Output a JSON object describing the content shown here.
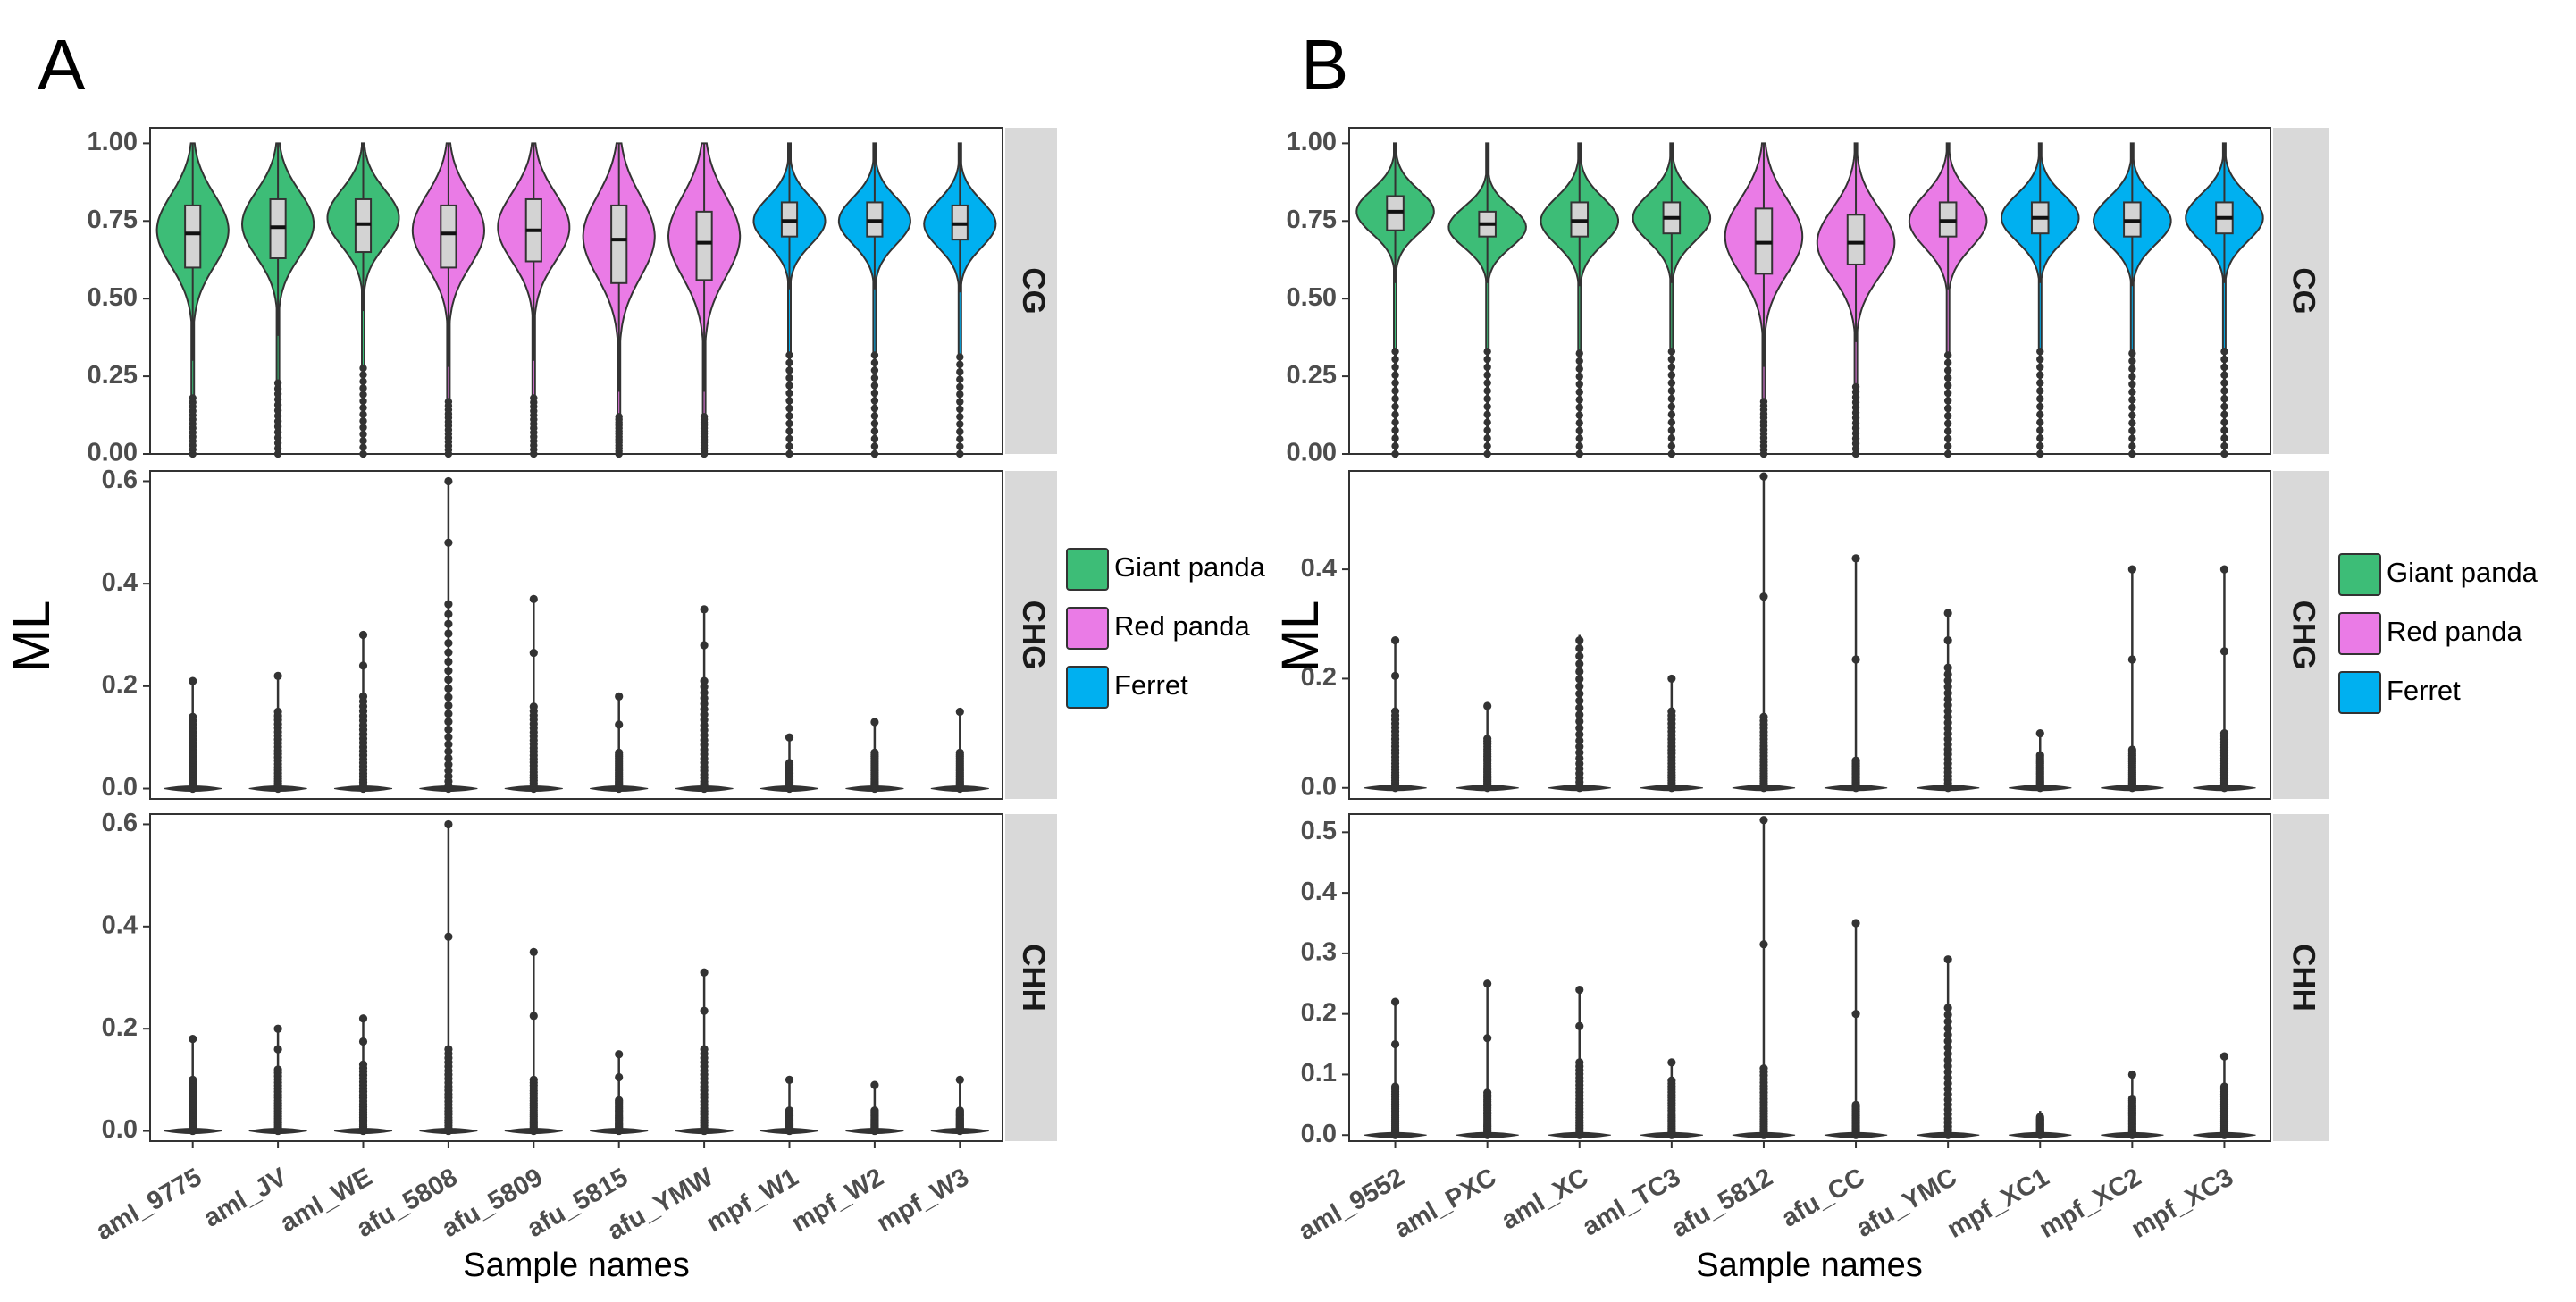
{
  "chart_data": [
    {
      "panel_letter": "A",
      "type": "violin",
      "xlabel": "Sample names",
      "ylabel": "ML",
      "samples": [
        "aml_9775",
        "aml_JV",
        "aml_WE",
        "afu_5808",
        "afu_5809",
        "afu_5815",
        "afu_YMW",
        "mpf_W1",
        "mpf_W2",
        "mpf_W3"
      ],
      "groups": [
        "Giant panda",
        "Giant panda",
        "Giant panda",
        "Red panda",
        "Red panda",
        "Red panda",
        "Red panda",
        "Ferret",
        "Ferret",
        "Ferret"
      ],
      "facets": [
        {
          "label": "CG",
          "ylim": [
            0,
            1.05
          ],
          "ticks": [
            0,
            0.25,
            0.5,
            0.75,
            1.0
          ],
          "tick_labels": [
            "0.00",
            "0.25",
            "0.50",
            "0.75",
            "1.00"
          ],
          "series": [
            {
              "sample": "aml_9775",
              "q1": 0.6,
              "median": 0.71,
              "q3": 0.8,
              "whisker_low": 0.3,
              "max": 1.0,
              "mode": 0.72,
              "spread": 0.115
            },
            {
              "sample": "aml_JV",
              "q1": 0.63,
              "median": 0.73,
              "q3": 0.82,
              "whisker_low": 0.38,
              "max": 1.0,
              "mode": 0.74,
              "spread": 0.105
            },
            {
              "sample": "aml_WE",
              "q1": 0.65,
              "median": 0.74,
              "q3": 0.82,
              "whisker_low": 0.46,
              "max": 1.0,
              "mode": 0.76,
              "spread": 0.09
            },
            {
              "sample": "afu_5808",
              "q1": 0.6,
              "median": 0.71,
              "q3": 0.8,
              "whisker_low": 0.28,
              "max": 1.0,
              "mode": 0.72,
              "spread": 0.115
            },
            {
              "sample": "afu_5809",
              "q1": 0.62,
              "median": 0.72,
              "q3": 0.82,
              "whisker_low": 0.3,
              "max": 1.0,
              "mode": 0.73,
              "spread": 0.11
            },
            {
              "sample": "afu_5815",
              "q1": 0.55,
              "median": 0.69,
              "q3": 0.8,
              "whisker_low": 0.2,
              "max": 1.0,
              "mode": 0.7,
              "spread": 0.13
            },
            {
              "sample": "afu_YMW",
              "q1": 0.56,
              "median": 0.68,
              "q3": 0.78,
              "whisker_low": 0.2,
              "max": 1.0,
              "mode": 0.7,
              "spread": 0.13
            },
            {
              "sample": "mpf_W1",
              "q1": 0.7,
              "median": 0.75,
              "q3": 0.81,
              "whisker_low": 0.53,
              "max": 1.0,
              "mode": 0.75,
              "spread": 0.075
            },
            {
              "sample": "mpf_W2",
              "q1": 0.7,
              "median": 0.75,
              "q3": 0.81,
              "whisker_low": 0.53,
              "max": 1.0,
              "mode": 0.75,
              "spread": 0.075
            },
            {
              "sample": "mpf_W3",
              "q1": 0.69,
              "median": 0.74,
              "q3": 0.8,
              "whisker_low": 0.52,
              "max": 1.0,
              "mode": 0.74,
              "spread": 0.075
            }
          ]
        },
        {
          "label": "CHG",
          "ylim": [
            -0.02,
            0.62
          ],
          "ticks": [
            0,
            0.2,
            0.4,
            0.6
          ],
          "tick_labels": [
            "0.0",
            "0.2",
            "0.4",
            "0.6"
          ],
          "series": [
            {
              "sample": "aml_9775",
              "max": 0.21,
              "dense": 0.14
            },
            {
              "sample": "aml_JV",
              "max": 0.22,
              "dense": 0.15
            },
            {
              "sample": "aml_WE",
              "max": 0.3,
              "dense": 0.18
            },
            {
              "sample": "afu_5808",
              "max": 0.6,
              "dense": 0.36
            },
            {
              "sample": "afu_5809",
              "max": 0.37,
              "dense": 0.16
            },
            {
              "sample": "afu_5815",
              "max": 0.18,
              "dense": 0.07
            },
            {
              "sample": "afu_YMW",
              "max": 0.35,
              "dense": 0.21
            },
            {
              "sample": "mpf_W1",
              "max": 0.1,
              "dense": 0.05
            },
            {
              "sample": "mpf_W2",
              "max": 0.13,
              "dense": 0.07
            },
            {
              "sample": "mpf_W3",
              "max": 0.15,
              "dense": 0.07
            }
          ]
        },
        {
          "label": "CHH",
          "ylim": [
            -0.02,
            0.62
          ],
          "ticks": [
            0,
            0.2,
            0.4,
            0.6
          ],
          "tick_labels": [
            "0.0",
            "0.2",
            "0.4",
            "0.6"
          ],
          "series": [
            {
              "sample": "aml_9775",
              "max": 0.18,
              "dense": 0.1
            },
            {
              "sample": "aml_JV",
              "max": 0.2,
              "dense": 0.12
            },
            {
              "sample": "aml_WE",
              "max": 0.22,
              "dense": 0.13
            },
            {
              "sample": "afu_5808",
              "max": 0.6,
              "dense": 0.16
            },
            {
              "sample": "afu_5809",
              "max": 0.35,
              "dense": 0.1
            },
            {
              "sample": "afu_5815",
              "max": 0.15,
              "dense": 0.06
            },
            {
              "sample": "afu_YMW",
              "max": 0.31,
              "dense": 0.16
            },
            {
              "sample": "mpf_W1",
              "max": 0.1,
              "dense": 0.04
            },
            {
              "sample": "mpf_W2",
              "max": 0.09,
              "dense": 0.04
            },
            {
              "sample": "mpf_W3",
              "max": 0.1,
              "dense": 0.04
            }
          ]
        }
      ]
    },
    {
      "panel_letter": "B",
      "type": "violin",
      "xlabel": "Sample names",
      "ylabel": "ML",
      "samples": [
        "aml_9552",
        "aml_PXC",
        "aml_XC",
        "aml_TC3",
        "afu_5812",
        "afu_CC",
        "afu_YMC",
        "mpf_XC1",
        "mpf_XC2",
        "mpf_XC3"
      ],
      "groups": [
        "Giant panda",
        "Giant panda",
        "Giant panda",
        "Giant panda",
        "Red panda",
        "Red panda",
        "Red panda",
        "Ferret",
        "Ferret",
        "Ferret"
      ],
      "facets": [
        {
          "label": "CG",
          "ylim": [
            0,
            1.05
          ],
          "ticks": [
            0,
            0.25,
            0.5,
            0.75,
            1.0
          ],
          "tick_labels": [
            "0.00",
            "0.25",
            "0.50",
            "0.75",
            "1.00"
          ],
          "series": [
            {
              "sample": "aml_9552",
              "q1": 0.72,
              "median": 0.78,
              "q3": 0.83,
              "whisker_low": 0.55,
              "max": 1.0,
              "mode": 0.78,
              "spread": 0.07
            },
            {
              "sample": "aml_PXC",
              "q1": 0.7,
              "median": 0.74,
              "q3": 0.78,
              "whisker_low": 0.55,
              "max": 1.0,
              "mode": 0.73,
              "spread": 0.065
            },
            {
              "sample": "aml_XC",
              "q1": 0.7,
              "median": 0.75,
              "q3": 0.81,
              "whisker_low": 0.54,
              "max": 1.0,
              "mode": 0.75,
              "spread": 0.075
            },
            {
              "sample": "aml_TC3",
              "q1": 0.71,
              "median": 0.76,
              "q3": 0.81,
              "whisker_low": 0.55,
              "max": 1.0,
              "mode": 0.76,
              "spread": 0.075
            },
            {
              "sample": "afu_5812",
              "q1": 0.58,
              "median": 0.68,
              "q3": 0.79,
              "whisker_low": 0.28,
              "max": 1.0,
              "mode": 0.7,
              "spread": 0.12
            },
            {
              "sample": "afu_CC",
              "q1": 0.61,
              "median": 0.68,
              "q3": 0.77,
              "whisker_low": 0.36,
              "max": 1.0,
              "mode": 0.68,
              "spread": 0.11
            },
            {
              "sample": "afu_YMC",
              "q1": 0.7,
              "median": 0.75,
              "q3": 0.81,
              "whisker_low": 0.53,
              "max": 1.0,
              "mode": 0.75,
              "spread": 0.085
            },
            {
              "sample": "mpf_XC1",
              "q1": 0.71,
              "median": 0.76,
              "q3": 0.81,
              "whisker_low": 0.55,
              "max": 1.0,
              "mode": 0.76,
              "spread": 0.075
            },
            {
              "sample": "mpf_XC2",
              "q1": 0.7,
              "median": 0.75,
              "q3": 0.81,
              "whisker_low": 0.54,
              "max": 1.0,
              "mode": 0.75,
              "spread": 0.075
            },
            {
              "sample": "mpf_XC3",
              "q1": 0.71,
              "median": 0.76,
              "q3": 0.81,
              "whisker_low": 0.55,
              "max": 1.0,
              "mode": 0.76,
              "spread": 0.075
            }
          ]
        },
        {
          "label": "CHG",
          "ylim": [
            -0.02,
            0.58
          ],
          "ticks": [
            0,
            0.2,
            0.4
          ],
          "tick_labels": [
            "0.0",
            "0.2",
            "0.4"
          ],
          "series": [
            {
              "sample": "aml_9552",
              "max": 0.27,
              "dense": 0.14
            },
            {
              "sample": "aml_PXC",
              "max": 0.15,
              "dense": 0.09
            },
            {
              "sample": "aml_XC",
              "max": 0.28,
              "dense": 0.27
            },
            {
              "sample": "aml_TC3",
              "max": 0.2,
              "dense": 0.14
            },
            {
              "sample": "afu_5812",
              "max": 0.57,
              "dense": 0.13
            },
            {
              "sample": "afu_CC",
              "max": 0.42,
              "dense": 0.05
            },
            {
              "sample": "afu_YMC",
              "max": 0.32,
              "dense": 0.22
            },
            {
              "sample": "mpf_XC1",
              "max": 0.1,
              "dense": 0.06
            },
            {
              "sample": "mpf_XC2",
              "max": 0.4,
              "dense": 0.07
            },
            {
              "sample": "mpf_XC3",
              "max": 0.4,
              "dense": 0.1
            }
          ]
        },
        {
          "label": "CHH",
          "ylim": [
            -0.01,
            0.53
          ],
          "ticks": [
            0,
            0.1,
            0.2,
            0.3,
            0.4,
            0.5
          ],
          "tick_labels": [
            "0.0",
            "0.1",
            "0.2",
            "0.3",
            "0.4",
            "0.5"
          ],
          "series": [
            {
              "sample": "aml_9552",
              "max": 0.22,
              "dense": 0.08
            },
            {
              "sample": "aml_PXC",
              "max": 0.25,
              "dense": 0.07
            },
            {
              "sample": "aml_XC",
              "max": 0.24,
              "dense": 0.12
            },
            {
              "sample": "aml_TC3",
              "max": 0.12,
              "dense": 0.09
            },
            {
              "sample": "afu_5812",
              "max": 0.52,
              "dense": 0.11
            },
            {
              "sample": "afu_CC",
              "max": 0.35,
              "dense": 0.05
            },
            {
              "sample": "afu_YMC",
              "max": 0.29,
              "dense": 0.21
            },
            {
              "sample": "mpf_XC1",
              "max": 0.04,
              "dense": 0.03
            },
            {
              "sample": "mpf_XC2",
              "max": 0.1,
              "dense": 0.06
            },
            {
              "sample": "mpf_XC3",
              "max": 0.13,
              "dense": 0.08
            }
          ]
        }
      ]
    }
  ],
  "legend": {
    "entries": [
      {
        "label": "Giant panda",
        "color": "#3dbd77"
      },
      {
        "label": "Red panda",
        "color": "#ea7be6"
      },
      {
        "label": "Ferret",
        "color": "#00b0f0"
      }
    ]
  },
  "colors": {
    "box_fill": "#d3d3d3",
    "strip_fill": "#d9d9d9",
    "outline": "#333333"
  }
}
